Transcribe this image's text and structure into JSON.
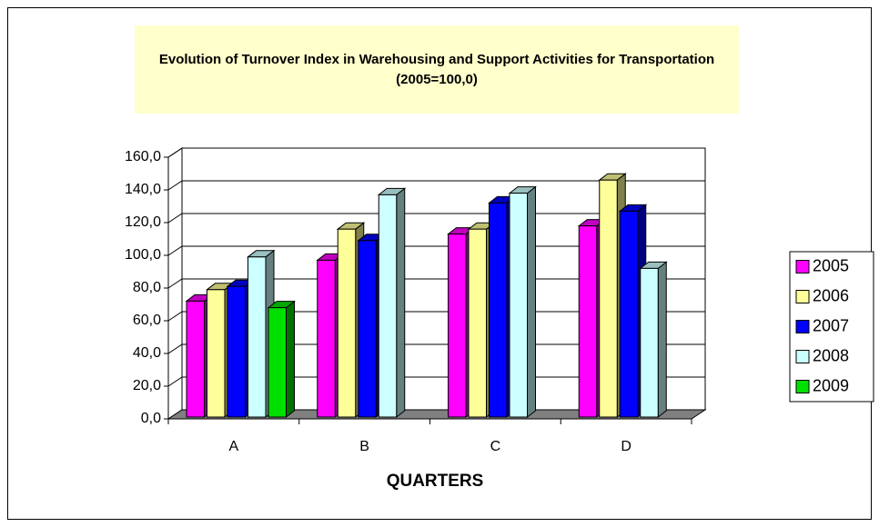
{
  "chart_data": {
    "type": "bar",
    "title": "Evolution of Turnover Index in Warehousing and Support Activities for Transportation",
    "subtitle": "(2005=100,0)",
    "x_label": "QUARTERS",
    "categories": [
      "A",
      "B",
      "C",
      "D"
    ],
    "series": [
      {
        "name": "2005",
        "color": "#ff00ff",
        "values": [
          72,
          97,
          113,
          118
        ]
      },
      {
        "name": "2006",
        "color": "#ffff99",
        "values": [
          79,
          116,
          116,
          146
        ]
      },
      {
        "name": "2007",
        "color": "#0000ff",
        "values": [
          81,
          109,
          132,
          127
        ]
      },
      {
        "name": "2008",
        "color": "#ccffff",
        "values": [
          99,
          137,
          138,
          92
        ]
      },
      {
        "name": "2009",
        "color": "#00e000",
        "values": [
          68,
          null,
          null,
          null
        ]
      }
    ],
    "ylim": [
      0,
      160
    ],
    "yticks": [
      {
        "value": 0,
        "label": "0,0"
      },
      {
        "value": 20,
        "label": "20,0"
      },
      {
        "value": 40,
        "label": "40,0"
      },
      {
        "value": 60,
        "label": "60,0"
      },
      {
        "value": 80,
        "label": "80,0"
      },
      {
        "value": 100,
        "label": "100,0"
      },
      {
        "value": 120,
        "label": "120,0"
      },
      {
        "value": 140,
        "label": "140,0"
      },
      {
        "value": 160,
        "label": "160,0"
      }
    ],
    "grid": true,
    "legend": "right"
  }
}
